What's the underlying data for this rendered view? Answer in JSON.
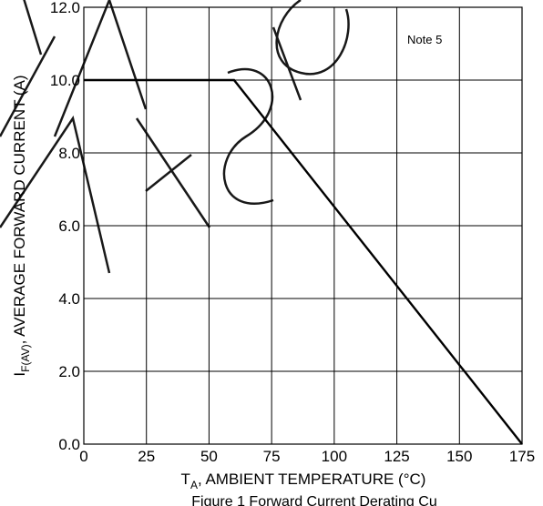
{
  "chart_data": {
    "type": "line",
    "xlabel": "T_A, AMBIENT TEMPERATURE (°C)",
    "xlabel_main": "T",
    "xlabel_sub": "A",
    "xlabel_rest": ", AMBIENT TEMPERATURE (°C)",
    "ylabel_main": "I",
    "ylabel_sub": "F(AV)",
    "ylabel_rest": ", AVERAGE FORWARD CURRENT (A)",
    "xlim": [
      0,
      175
    ],
    "ylim": [
      0,
      12
    ],
    "xticks": [
      0,
      25,
      50,
      75,
      100,
      125,
      150,
      175
    ],
    "xtick_labels": [
      "0",
      "25",
      "50",
      "75",
      "100",
      "125",
      "150",
      "175"
    ],
    "yticks": [
      0,
      2,
      4,
      6,
      8,
      10,
      12
    ],
    "ytick_labels": [
      "0.0",
      "2.0",
      "4.0",
      "6.0",
      "8.0",
      "10.0",
      "12.0"
    ],
    "grid": true,
    "series": [
      {
        "x": [
          0,
          60,
          175
        ],
        "y": [
          10,
          10,
          0
        ]
      }
    ],
    "annotations": [
      {
        "text": "Note 5"
      }
    ]
  },
  "caption": "Figure 1 Forward Current Derating Cu"
}
